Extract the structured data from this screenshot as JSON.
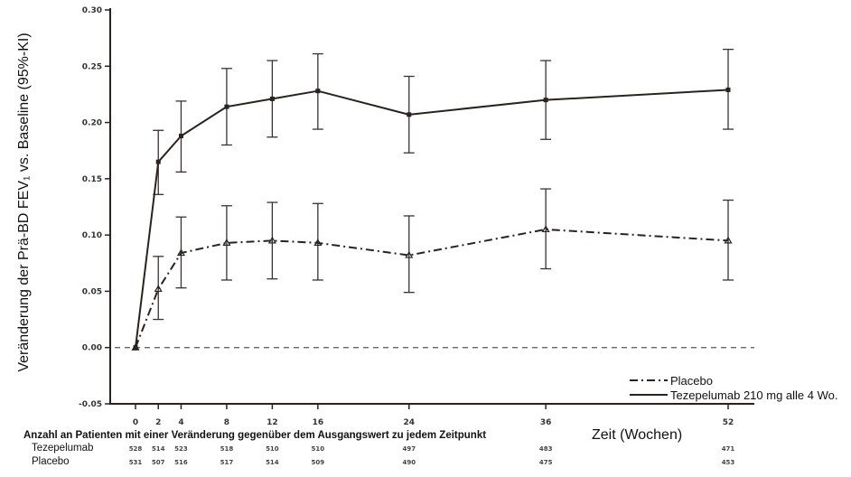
{
  "chart_data": {
    "type": "line",
    "title": "",
    "xlabel": "Zeit (Wochen)",
    "ylabel": "Veränderung der Prä-BD FEV₁ vs. Baseline (95%-KI)",
    "ylim": [
      -0.05,
      0.3
    ],
    "xlim": [
      0,
      52
    ],
    "yticks": [
      -0.05,
      0.0,
      0.05,
      0.1,
      0.15,
      0.2,
      0.25,
      0.3
    ],
    "ytick_labels": [
      "-0.05",
      "0.00",
      "0.05",
      "0.10",
      "0.15",
      "0.20",
      "0.25",
      "0.30"
    ],
    "xticks": [
      0,
      2,
      4,
      8,
      12,
      16,
      24,
      36,
      52
    ],
    "xtick_labels": [
      "0",
      "2",
      "4",
      "8",
      "12",
      "16",
      "24",
      "36",
      "52"
    ],
    "reference_line": {
      "y": 0,
      "style": "dashed"
    },
    "grid": false,
    "legend_position": "bottom-right",
    "series": [
      {
        "name": "Placebo",
        "line_style": "dash-dot",
        "marker": "triangle",
        "color": "#2b2220",
        "x": [
          0,
          2,
          4,
          8,
          12,
          16,
          24,
          36,
          52
        ],
        "y": [
          0.0,
          0.052,
          0.084,
          0.093,
          0.095,
          0.093,
          0.082,
          0.105,
          0.095
        ],
        "ci_lower": [
          0.0,
          0.025,
          0.053,
          0.06,
          0.061,
          0.06,
          0.049,
          0.07,
          0.06
        ],
        "ci_upper": [
          0.0,
          0.081,
          0.116,
          0.126,
          0.129,
          0.128,
          0.117,
          0.141,
          0.131
        ]
      },
      {
        "name": "Tezepelumab 210 mg alle 4 Wo.",
        "line_style": "solid",
        "marker": "square",
        "color": "#2b2220",
        "x": [
          0,
          2,
          4,
          8,
          12,
          16,
          24,
          36,
          52
        ],
        "y": [
          0.0,
          0.165,
          0.188,
          0.214,
          0.221,
          0.228,
          0.207,
          0.22,
          0.229
        ],
        "ci_lower": [
          0.0,
          0.136,
          0.156,
          0.18,
          0.187,
          0.194,
          0.173,
          0.185,
          0.194
        ],
        "ci_upper": [
          0.0,
          0.193,
          0.219,
          0.248,
          0.255,
          0.261,
          0.241,
          0.255,
          0.265
        ]
      }
    ],
    "risk_table": {
      "title": "Anzahl an Patienten mit einer Veränderung gegenüber dem Ausgangswert zu jedem Zeitpunkt",
      "rows": [
        {
          "label": "Tezepelumab",
          "values": [
            "528",
            "514",
            "523",
            "518",
            "510",
            "510",
            "497",
            "483",
            "471"
          ]
        },
        {
          "label": "Placebo",
          "values": [
            "531",
            "507",
            "516",
            "517",
            "514",
            "509",
            "490",
            "475",
            "453"
          ]
        }
      ]
    }
  }
}
